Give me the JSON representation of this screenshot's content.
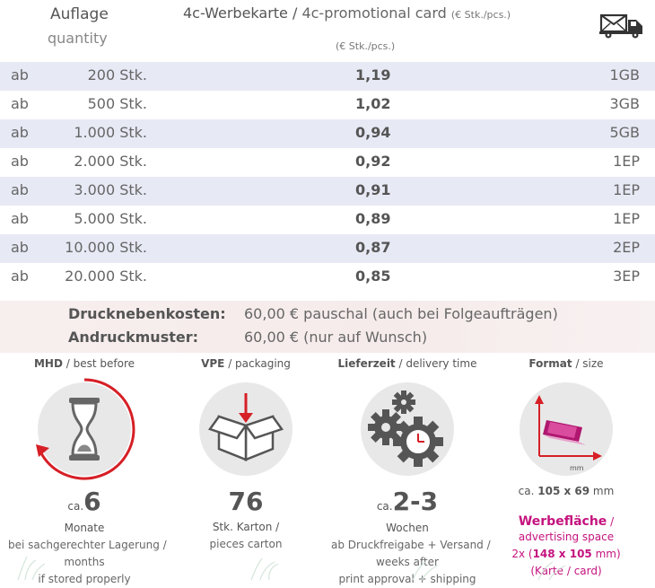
{
  "header": {
    "quantity_de": "Auflage",
    "quantity_en": "quantity",
    "title_de": "4c-Werbekarte",
    "title_sep": " / ",
    "title_en": "4c-promotional card",
    "title_unit": "(€ Stk./pcs.)",
    "price_unit": "(€ Stk./pcs.)",
    "shipping_icon": "truck-mail-icon"
  },
  "rows": [
    {
      "ab": "ab",
      "qty": "200 Stk.",
      "price": "1,19",
      "pack": "1GB"
    },
    {
      "ab": "ab",
      "qty": "500 Stk.",
      "price": "1,02",
      "pack": "3GB"
    },
    {
      "ab": "ab",
      "qty": "1.000 Stk.",
      "price": "0,94",
      "pack": "5GB"
    },
    {
      "ab": "ab",
      "qty": "2.000 Stk.",
      "price": "0,92",
      "pack": "1EP"
    },
    {
      "ab": "ab",
      "qty": "3.000 Stk.",
      "price": "0,91",
      "pack": "1EP"
    },
    {
      "ab": "ab",
      "qty": "5.000 Stk.",
      "price": "0,89",
      "pack": "1EP"
    },
    {
      "ab": "ab",
      "qty": "10.000 Stk.",
      "price": "0,87",
      "pack": "2EP"
    },
    {
      "ab": "ab",
      "qty": "20.000 Stk.",
      "price": "0,85",
      "pack": "3EP"
    }
  ],
  "costs": {
    "print_label": "Drucknebenkosten:",
    "print_value": "60,00 € pauschal (auch bei Folgeaufträgen)",
    "proof_label": "Andruckmuster:",
    "proof_value": "60,00 € (nur auf Wunsch)"
  },
  "features": {
    "mhd": {
      "title_b": "MHD",
      "title_rest": " / best before",
      "icon": "hourglass-icon",
      "ca": "ca.",
      "number": "6",
      "unit": "Monate",
      "line1": "bei sachgerechter Lagerung /",
      "line2": "months",
      "line3": "if stored properly"
    },
    "vpe": {
      "title_b": "VPE",
      "title_rest": " / packaging",
      "icon": "box-icon",
      "number": "76",
      "line1": "Stk. Karton /",
      "line2": "pieces carton"
    },
    "delivery": {
      "title_b": "Lieferzeit",
      "title_rest": " / delivery time",
      "icon": "gears-clock-icon",
      "ca": "ca.",
      "number": "2-3",
      "unit": "Wochen",
      "line1": "ab Druckfreigabe + Versand /",
      "line2": "weeks after",
      "line3": "print approval + shipping"
    },
    "format": {
      "title_b": "Format",
      "title_rest": " / size",
      "icon": "card-format-icon",
      "mm_label": "mm",
      "size_prefix": "ca. ",
      "size": "105 x 69",
      "size_unit": " mm",
      "ad_label": "Werbefläche",
      "ad_sep": " /",
      "ad_en": "advertising space",
      "ad_prefix": "2x (",
      "ad_size": "148 x 105",
      "ad_suffix": " mm)",
      "ad_card": "(Karte / card)"
    }
  }
}
